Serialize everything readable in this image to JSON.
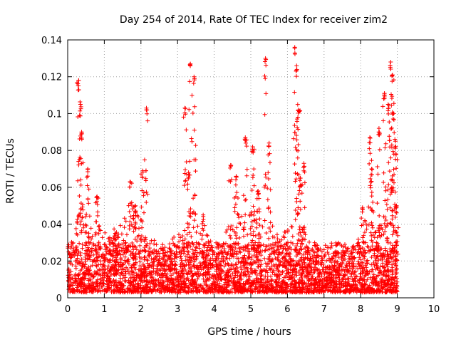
{
  "chart_data": {
    "type": "scatter",
    "title": "Day 254 of 2014, Rate Of TEC Index for receiver zim2",
    "xlabel": "GPS time / hours",
    "ylabel": "ROTI / TECUs",
    "xlim": [
      0,
      10
    ],
    "ylim": [
      0,
      0.14
    ],
    "x_ticks": [
      "0",
      "1",
      "2",
      "3",
      "4",
      "5",
      "6",
      "7",
      "8",
      "9",
      "10"
    ],
    "y_ticks": [
      "0",
      "0.02",
      "0.04",
      "0.06",
      "0.08",
      "0.1",
      "0.12",
      "0.14"
    ],
    "grid": true,
    "marker": "+",
    "marker_color": "#ff0000",
    "data_range_hours": [
      0,
      9
    ],
    "baseline_range": [
      0.003,
      0.03
    ],
    "peaks": [
      {
        "x": 0.3,
        "y": 0.118
      },
      {
        "x": 0.35,
        "y": 0.105
      },
      {
        "x": 0.38,
        "y": 0.09
      },
      {
        "x": 0.55,
        "y": 0.07
      },
      {
        "x": 0.8,
        "y": 0.055
      },
      {
        "x": 1.3,
        "y": 0.035
      },
      {
        "x": 1.7,
        "y": 0.063
      },
      {
        "x": 1.85,
        "y": 0.05
      },
      {
        "x": 2.05,
        "y": 0.069
      },
      {
        "x": 2.15,
        "y": 0.103
      },
      {
        "x": 3.2,
        "y": 0.103
      },
      {
        "x": 3.3,
        "y": 0.068
      },
      {
        "x": 3.35,
        "y": 0.127
      },
      {
        "x": 3.45,
        "y": 0.12
      },
      {
        "x": 3.7,
        "y": 0.045
      },
      {
        "x": 4.45,
        "y": 0.072
      },
      {
        "x": 4.6,
        "y": 0.066
      },
      {
        "x": 4.85,
        "y": 0.087
      },
      {
        "x": 5.05,
        "y": 0.082
      },
      {
        "x": 5.2,
        "y": 0.058
      },
      {
        "x": 5.4,
        "y": 0.13
      },
      {
        "x": 5.5,
        "y": 0.084
      },
      {
        "x": 6.2,
        "y": 0.136
      },
      {
        "x": 6.25,
        "y": 0.126
      },
      {
        "x": 6.3,
        "y": 0.102
      },
      {
        "x": 6.45,
        "y": 0.073
      },
      {
        "x": 6.35,
        "y": 0.065
      },
      {
        "x": 8.05,
        "y": 0.049
      },
      {
        "x": 8.25,
        "y": 0.087
      },
      {
        "x": 8.3,
        "y": 0.07
      },
      {
        "x": 8.5,
        "y": 0.092
      },
      {
        "x": 8.65,
        "y": 0.111
      },
      {
        "x": 8.75,
        "y": 0.105
      },
      {
        "x": 8.82,
        "y": 0.128
      },
      {
        "x": 8.87,
        "y": 0.121
      },
      {
        "x": 8.9,
        "y": 0.1
      },
      {
        "x": 8.95,
        "y": 0.085
      },
      {
        "x": 8.85,
        "y": 0.06
      },
      {
        "x": 8.98,
        "y": 0.05
      }
    ],
    "activity_profile": [
      {
        "x": 0.0,
        "max": 0.02
      },
      {
        "x": 0.2,
        "max": 0.04
      },
      {
        "x": 0.35,
        "max": 0.05
      },
      {
        "x": 0.5,
        "max": 0.045
      },
      {
        "x": 0.8,
        "max": 0.05
      },
      {
        "x": 1.1,
        "max": 0.035
      },
      {
        "x": 1.4,
        "max": 0.04
      },
      {
        "x": 1.7,
        "max": 0.048
      },
      {
        "x": 1.95,
        "max": 0.05
      },
      {
        "x": 2.3,
        "max": 0.035
      },
      {
        "x": 2.7,
        "max": 0.03
      },
      {
        "x": 3.0,
        "max": 0.035
      },
      {
        "x": 3.3,
        "max": 0.045
      },
      {
        "x": 3.6,
        "max": 0.045
      },
      {
        "x": 3.9,
        "max": 0.035
      },
      {
        "x": 4.2,
        "max": 0.03
      },
      {
        "x": 4.5,
        "max": 0.045
      },
      {
        "x": 4.8,
        "max": 0.05
      },
      {
        "x": 5.1,
        "max": 0.05
      },
      {
        "x": 5.4,
        "max": 0.045
      },
      {
        "x": 5.8,
        "max": 0.035
      },
      {
        "x": 6.2,
        "max": 0.045
      },
      {
        "x": 6.5,
        "max": 0.035
      },
      {
        "x": 7.0,
        "max": 0.025
      },
      {
        "x": 7.5,
        "max": 0.025
      },
      {
        "x": 7.9,
        "max": 0.03
      },
      {
        "x": 8.1,
        "max": 0.045
      },
      {
        "x": 8.4,
        "max": 0.04
      },
      {
        "x": 8.7,
        "max": 0.04
      },
      {
        "x": 9.0,
        "max": 0.035
      }
    ]
  }
}
